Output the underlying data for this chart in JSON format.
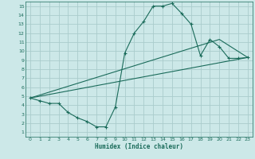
{
  "xlabel": "Humidex (Indice chaleur)",
  "bg_color": "#cce8e8",
  "grid_color": "#aacccc",
  "line_color": "#1a6b5a",
  "axis_bg": "#cce8e8",
  "xlim": [
    -0.5,
    23.5
  ],
  "ylim": [
    0.5,
    15.5
  ],
  "xticks": [
    0,
    1,
    2,
    3,
    4,
    5,
    6,
    7,
    8,
    9,
    10,
    11,
    12,
    13,
    14,
    15,
    16,
    17,
    18,
    19,
    20,
    21,
    22,
    23
  ],
  "yticks": [
    1,
    2,
    3,
    4,
    5,
    6,
    7,
    8,
    9,
    10,
    11,
    12,
    13,
    14,
    15
  ],
  "main_x": [
    0,
    1,
    2,
    3,
    4,
    5,
    6,
    7,
    8,
    9,
    10,
    11,
    12,
    13,
    14,
    15,
    16,
    17,
    18,
    19,
    20,
    21,
    22,
    23
  ],
  "main_y": [
    4.8,
    4.5,
    4.2,
    4.2,
    3.2,
    2.6,
    2.2,
    1.6,
    1.6,
    3.8,
    9.8,
    12.0,
    13.3,
    15.0,
    15.0,
    15.3,
    14.2,
    13.0,
    9.5,
    11.3,
    10.5,
    9.2,
    9.2,
    9.3
  ],
  "line2_x": [
    0,
    23
  ],
  "line2_y": [
    4.8,
    9.3
  ],
  "line3_x": [
    0,
    20,
    23
  ],
  "line3_y": [
    4.8,
    11.3,
    9.3
  ],
  "line4_x": [
    0,
    23
  ],
  "line4_y": [
    4.8,
    9.3
  ]
}
